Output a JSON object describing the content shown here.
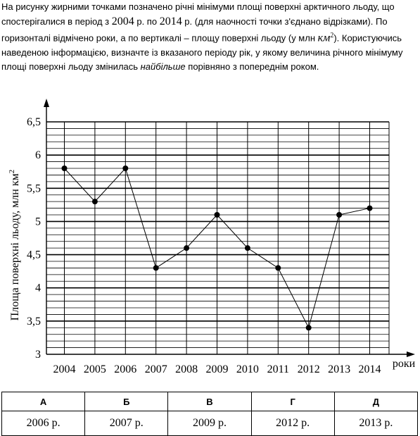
{
  "question": {
    "part1": "На рисунку жирними точками позначено річні мінімуми площі поверхні арктичного льоду, що спостерігалися в період з ",
    "year_from": "2004",
    "part2": " р. по ",
    "year_to": "2014",
    "part3": " р. (для наочності точки з'єднано відрізками). По горизонталі відмічено роки, а по вертикалі – площу поверхні льоду (у млн ",
    "unit": "км",
    "unit_power": "2",
    "part4": "). Користуючись наведеною інформацією, визначте із вказаного періоду рік, у якому величина річного мінімуму площі поверхні льоду змінилась ",
    "emphasis": "найбільше",
    "part5": " порівняно з попереднім роком."
  },
  "chart_data": {
    "type": "line",
    "x": [
      "2004",
      "2005",
      "2006",
      "2007",
      "2008",
      "2009",
      "2010",
      "2011",
      "2012",
      "2013",
      "2014"
    ],
    "y": [
      5.8,
      5.3,
      5.8,
      4.3,
      4.6,
      5.1,
      4.6,
      4.3,
      3.4,
      5.1,
      5.2
    ],
    "ylim": [
      3,
      6.5
    ],
    "y_ticks": [
      "3",
      "3,5",
      "4",
      "4,5",
      "5",
      "5,5",
      "6",
      "6,5"
    ],
    "ylabel": "Площа поверхні льоду, млн км",
    "ylabel_power": "2",
    "xlabel": "роки",
    "grid": true,
    "minor_step": 0.1,
    "point_color": "#000000",
    "line_color": "#000000"
  },
  "answers": {
    "headers": [
      "А",
      "Б",
      "В",
      "Г",
      "Д"
    ],
    "options": [
      "2006 р.",
      "2007 р.",
      "2009 р.",
      "2012 р.",
      "2013 р."
    ]
  }
}
